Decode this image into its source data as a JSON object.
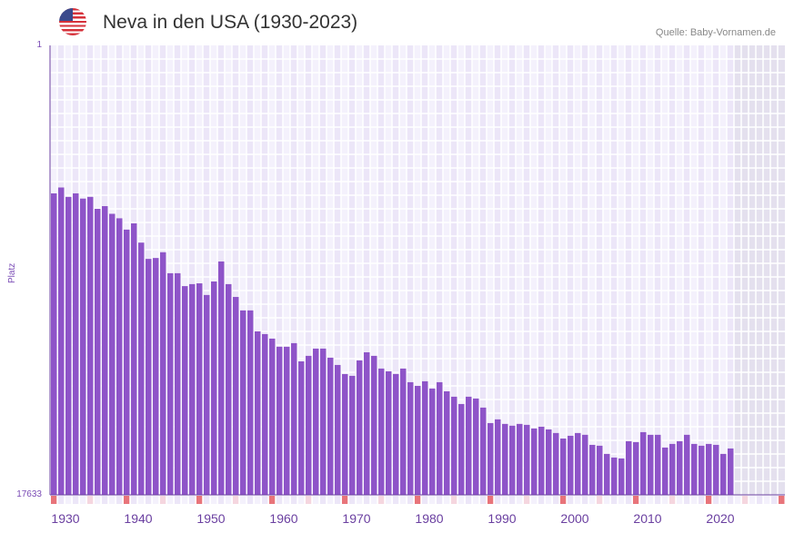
{
  "header": {
    "title": "Neva in den USA (1930-2023)",
    "source": "Quelle: Baby-Vornamen.de",
    "flag_icon": "us-flag-icon"
  },
  "chart_data": {
    "type": "bar",
    "title": "Neva in den USA (1930-2023)",
    "ylabel": "Platz",
    "yscale": "log-inverted",
    "ylim": [
      1,
      17633
    ],
    "ytick_labels": [
      "1",
      "17633"
    ],
    "xlim": [
      1930,
      2030
    ],
    "xtick_labels": [
      "1930",
      "1940",
      "1950",
      "1960",
      "1970",
      "1980",
      "1990",
      "2000",
      "2010",
      "2020"
    ],
    "bar_color": "#8e54c8",
    "years": [
      1930,
      1931,
      1932,
      1933,
      1934,
      1935,
      1936,
      1937,
      1938,
      1939,
      1940,
      1941,
      1942,
      1943,
      1944,
      1945,
      1946,
      1947,
      1948,
      1949,
      1950,
      1951,
      1952,
      1953,
      1954,
      1955,
      1956,
      1957,
      1958,
      1959,
      1960,
      1961,
      1962,
      1963,
      1964,
      1965,
      1966,
      1967,
      1968,
      1969,
      1970,
      1971,
      1972,
      1973,
      1974,
      1975,
      1976,
      1977,
      1978,
      1979,
      1980,
      1981,
      1982,
      1983,
      1984,
      1985,
      1986,
      1987,
      1988,
      1989,
      1990,
      1991,
      1992,
      1993,
      1994,
      1995,
      1996,
      1997,
      1998,
      1999,
      2000,
      2001,
      2002,
      2003,
      2004,
      2005,
      2006,
      2007,
      2008,
      2009,
      2010,
      2011,
      2012,
      2013,
      2014,
      2015,
      2016,
      2017,
      2018,
      2019,
      2020,
      2021,
      2022,
      2023
    ],
    "ranks": [
      25,
      22,
      27,
      25,
      28,
      27,
      35,
      33,
      39,
      43,
      55,
      48,
      73,
      104,
      102,
      90,
      142,
      142,
      188,
      180,
      177,
      228,
      170,
      110,
      180,
      238,
      319,
      319,
      503,
      534,
      589,
      703,
      703,
      650,
      966,
      857,
      732,
      732,
      892,
      1045,
      1273,
      1324,
      946,
      793,
      857,
      1130,
      1200,
      1273,
      1130,
      1520,
      1645,
      1490,
      1745,
      1520,
      1853,
      2085,
      2443,
      2085,
      2168,
      2642,
      3698,
      3413,
      3767,
      3918,
      3767,
      3846,
      4160,
      4000,
      4246,
      4592,
      5176,
      4877,
      4592,
      4775,
      5943,
      6056,
      7228,
      7830,
      7983,
      5483,
      5597,
      4505,
      4775,
      4775,
      6300,
      5823,
      5483,
      4775,
      5823,
      6056,
      5823,
      5943,
      7228,
      6427
    ]
  }
}
